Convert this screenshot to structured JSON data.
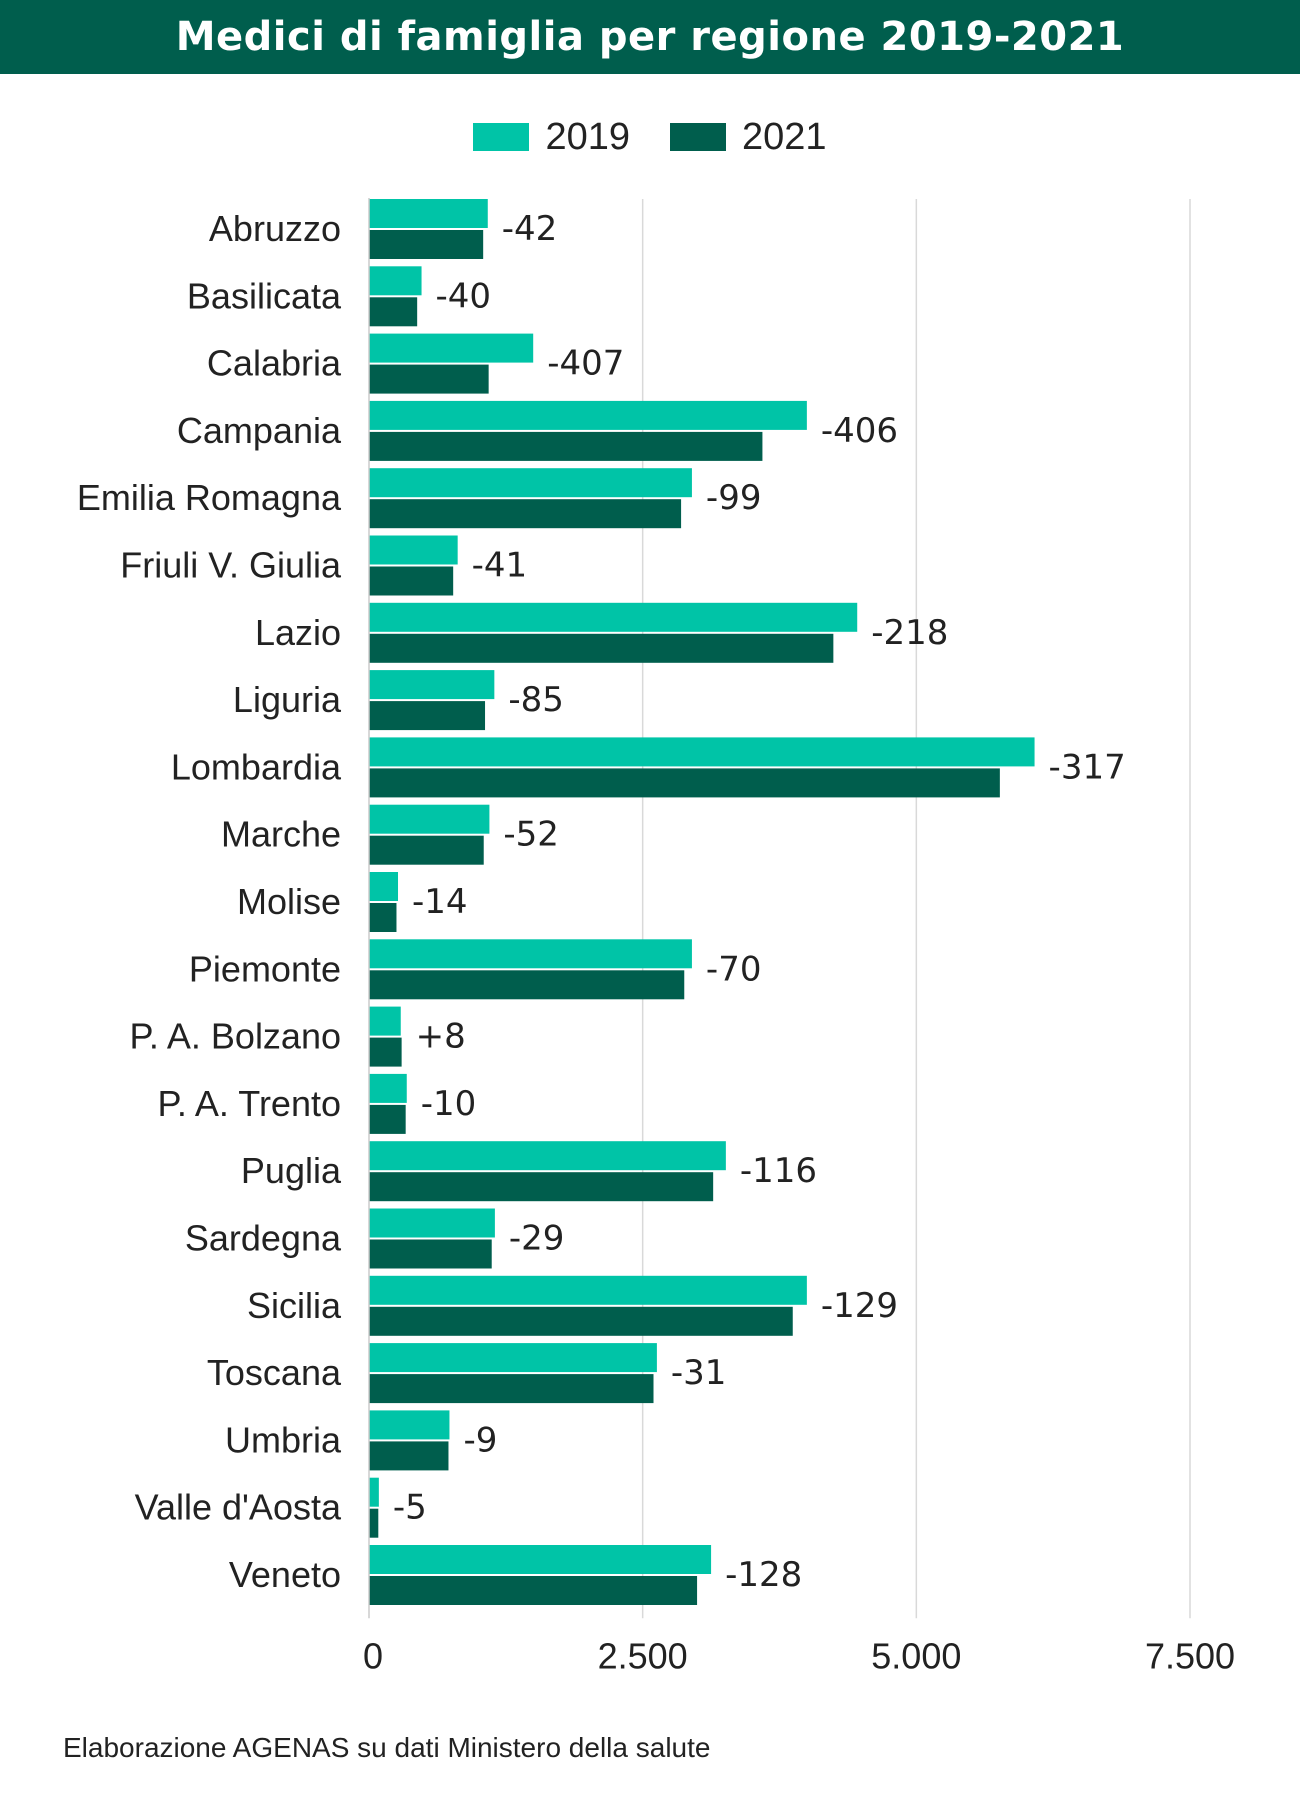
{
  "title": "Medici di famiglia per regione 2019-2021",
  "source": "Elaborazione AGENAS su dati Ministero della salute",
  "colors": {
    "header": "#005e4d",
    "series_2019": "#00c4a7",
    "series_2021": "#005e4d",
    "grid": "#d9d9d9"
  },
  "legend": [
    {
      "label": "2019",
      "color": "#00c4a7"
    },
    {
      "label": "2021",
      "color": "#005e4d"
    }
  ],
  "chart_data": {
    "type": "bar",
    "orientation": "horizontal",
    "title": "Medici di famiglia per regione 2019-2021",
    "xlabel": "",
    "ylabel": "",
    "xlim": [
      0,
      7500
    ],
    "grid": true,
    "legend_position": "top-center",
    "x_ticks": [
      {
        "value": 0,
        "label": "0"
      },
      {
        "value": 2500,
        "label": "2.500"
      },
      {
        "value": 5000,
        "label": "5.000"
      },
      {
        "value": 7500,
        "label": "7.500"
      }
    ],
    "categories": [
      "Abruzzo",
      "Basilicata",
      "Calabria",
      "Campania",
      "Emilia Romagna",
      "Friuli V. Giulia",
      "Lazio",
      "Liguria",
      "Lombardia",
      "Marche",
      "Molise",
      "Piemonte",
      "P. A. Bolzano",
      "P. A. Trento",
      "Puglia",
      "Sardegna",
      "Sicilia",
      "Toscana",
      "Umbria",
      "Valle d'Aosta",
      "Veneto"
    ],
    "series": [
      {
        "name": "2019",
        "color": "#00c4a7",
        "values": [
          1085,
          480,
          1500,
          4000,
          2950,
          810,
          4460,
          1145,
          6080,
          1100,
          265,
          2950,
          290,
          345,
          3260,
          1150,
          4000,
          2630,
          735,
          90,
          3125
        ]
      },
      {
        "name": "2021",
        "color": "#005e4d",
        "values": [
          1043,
          440,
          1093,
          3594,
          2851,
          769,
          4242,
          1060,
          5763,
          1048,
          251,
          2880,
          298,
          335,
          3144,
          1121,
          3871,
          2599,
          726,
          85,
          2997
        ]
      }
    ],
    "deltas": [
      "-42",
      "-40",
      "-407",
      "-406",
      "-99",
      "-41",
      "-218",
      "-85",
      "-317",
      "-52",
      "-14",
      "-70",
      "+8",
      "-10",
      "-116",
      "-29",
      "-129",
      "-31",
      "-9",
      "-5",
      "-128"
    ]
  }
}
